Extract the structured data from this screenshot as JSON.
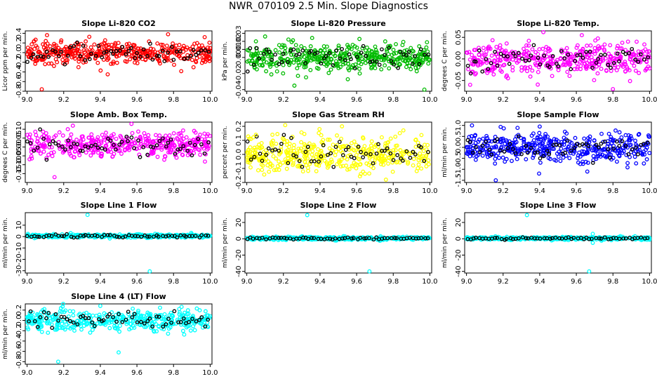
{
  "figure": {
    "title": "NWR_070109  2.5 Min. Slope Diagnostics",
    "x_tick_labels": [
      "9.0",
      "9.2",
      "9.4",
      "9.6",
      "9.8",
      "10.0"
    ],
    "xlim": [
      8.99,
      10.01
    ]
  },
  "chart_data": [
    {
      "type": "scatter",
      "title": "Slope Li-820 CO2",
      "ylabel": "Licor ppm per min.",
      "color": "#ff0000",
      "ylim": [
        -0.8,
        0.45
      ],
      "yticks": [
        -0.8,
        -0.6,
        -0.4,
        -0.2,
        0.0,
        0.2,
        0.4
      ],
      "ytick_labels": [
        "-0.8",
        "-0.6",
        "-0.4",
        "-0.2",
        "0.0",
        "0.2",
        "0.4"
      ],
      "center": 0.0,
      "spread": 0.11,
      "outliers": [
        [
          9.08,
          -0.76
        ],
        [
          9.77,
          0.38
        ],
        [
          9.97,
          0.32
        ],
        [
          9.44,
          -0.45
        ]
      ]
    },
    {
      "type": "scatter",
      "title": "Slope Li-820 Pressure",
      "ylabel": "kPa per min.",
      "color": "#00bb00",
      "ylim": [
        -0.042,
        0.033
      ],
      "yticks": [
        -0.04,
        -0.02,
        0.0,
        0.01,
        0.02,
        0.03
      ],
      "ytick_labels": [
        "-0.04",
        "-0.02",
        "0.00",
        "0.01",
        "0.02",
        "0.03"
      ],
      "center": 0.0,
      "spread": 0.009,
      "outliers": [
        [
          9.05,
          0.02
        ],
        [
          9.26,
          -0.035
        ],
        [
          9.97,
          -0.04
        ],
        [
          9.1,
          0.026
        ]
      ]
    },
    {
      "type": "scatter",
      "title": "Slope Li-820 Temp.",
      "ylabel": "degrees C per min.",
      "color": "#ff00ff",
      "ylim": [
        -0.075,
        0.065
      ],
      "yticks": [
        -0.05,
        0.0,
        0.05
      ],
      "ytick_labels": [
        "-0.05",
        "0.00",
        "0.05"
      ],
      "center": 0.0,
      "spread": 0.018,
      "outliers": [
        [
          9.63,
          0.055
        ],
        [
          9.42,
          0.062
        ],
        [
          9.02,
          -0.06
        ],
        [
          9.8,
          -0.07
        ]
      ]
    },
    {
      "type": "scatter",
      "title": "Slope Amb. Box Temp.",
      "ylabel": "degrees C per min.",
      "color": "#ff00ff",
      "ylim": [
        -0.2,
        0.14
      ],
      "yticks": [
        -0.15,
        -0.1,
        -0.05,
        0.0,
        0.05,
        0.1
      ],
      "ytick_labels": [
        "-0.15",
        "-0.10",
        "-0.05",
        "0.00",
        "0.05",
        "0.10"
      ],
      "center": 0.01,
      "spread": 0.034,
      "outliers": [
        [
          9.15,
          -0.17
        ],
        [
          9.57,
          0.13
        ],
        [
          9.25,
          0.12
        ]
      ]
    },
    {
      "type": "scatter",
      "title": "Slope Gas Stream RH",
      "ylabel": "percent per min.",
      "color": "#ffff00",
      "ylim": [
        -0.2,
        0.23
      ],
      "yticks": [
        -0.2,
        -0.1,
        0.0,
        0.1,
        0.2
      ],
      "ytick_labels": [
        "-0.2",
        "-0.1",
        "0.0",
        "0.1",
        "0.2"
      ],
      "center": 0.0,
      "spread": 0.065,
      "outliers": [
        [
          9.52,
          0.2
        ],
        [
          9.05,
          0.14
        ],
        [
          9.76,
          -0.18
        ]
      ]
    },
    {
      "type": "scatter",
      "title": "Slope Sample Flow",
      "ylabel": "ml/min per min.",
      "color": "#0000ff",
      "ylim": [
        -1.6,
        1.15
      ],
      "yticks": [
        -1.5,
        -1.0,
        -0.5,
        0.0,
        0.5,
        1.0
      ],
      "ytick_labels": [
        "-1.5",
        "-1.0",
        "-0.5",
        "0.0",
        "0.5",
        "1.0"
      ],
      "center": 0.0,
      "spread": 0.33,
      "outliers": [
        [
          9.03,
          1.0
        ],
        [
          9.4,
          0.95
        ],
        [
          9.66,
          -1.1
        ],
        [
          9.16,
          -1.5
        ]
      ]
    },
    {
      "type": "scatter",
      "title": "Slope Line 1 Flow",
      "ylabel": "ml/min per min.",
      "color": "#00ffff",
      "ylim": [
        -32,
        21
      ],
      "yticks": [
        -30,
        -20,
        -10,
        0,
        10
      ],
      "ytick_labels": [
        "-30",
        "-20",
        "-10",
        "0",
        "10"
      ],
      "center": 0.5,
      "spread": 0.7,
      "outliers": [
        [
          9.33,
          19.0
        ],
        [
          9.67,
          -30.5
        ]
      ]
    },
    {
      "type": "scatter",
      "title": "Slope Line 2 Flow",
      "ylabel": "ml/min per min.",
      "color": "#00ffff",
      "ylim": [
        -42,
        32
      ],
      "yticks": [
        -40,
        -20,
        0,
        20
      ],
      "ytick_labels": [
        "-40",
        "-20",
        "0",
        "20"
      ],
      "center": 0.5,
      "spread": 0.9,
      "outliers": [
        [
          9.33,
          29.0
        ],
        [
          9.67,
          -40.0
        ]
      ]
    },
    {
      "type": "scatter",
      "title": "Slope Line 3 Flow",
      "ylabel": "ml/min per min.",
      "color": "#00ffff",
      "ylim": [
        -42,
        32
      ],
      "yticks": [
        -40,
        -20,
        0,
        20
      ],
      "ytick_labels": [
        "-40",
        "-20",
        "0",
        "20"
      ],
      "center": 0.5,
      "spread": 0.9,
      "outliers": [
        [
          9.33,
          29.0
        ],
        [
          9.67,
          -40.0
        ],
        [
          9.69,
          6.0
        ],
        [
          9.69,
          -5.0
        ]
      ]
    },
    {
      "type": "scatter",
      "title": "Slope Line 4 (LT) Flow",
      "ylabel": "ml/min per min.",
      "color": "#00ffff",
      "ylim": [
        -0.85,
        0.32
      ],
      "yticks": [
        -0.8,
        -0.6,
        -0.4,
        -0.2,
        0.0,
        0.2
      ],
      "ytick_labels": [
        "-0.8",
        "-0.6",
        "-0.4",
        "-0.2",
        "0.0",
        "0.2"
      ],
      "center": 0.0,
      "spread": 0.1,
      "outliers": [
        [
          9.17,
          -0.8
        ],
        [
          9.5,
          -0.62
        ],
        [
          9.4,
          0.28
        ]
      ]
    }
  ]
}
